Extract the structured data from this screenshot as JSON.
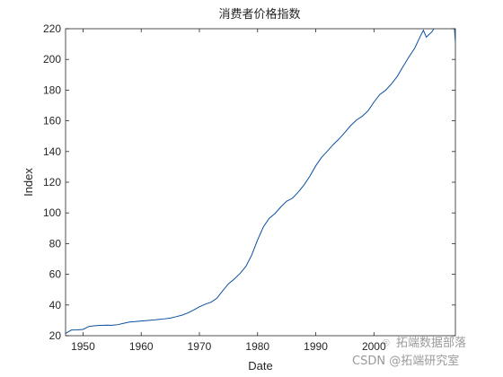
{
  "chart_data": {
    "type": "line",
    "title": "消费者价格指数",
    "xlabel": "Date",
    "ylabel": "Index",
    "xlim": [
      1947,
      2014
    ],
    "ylim": [
      20,
      220
    ],
    "xticks": [
      1950,
      1960,
      1970,
      1980,
      1990,
      2000
    ],
    "xtick_labels": [
      "1950",
      "1960",
      "1970",
      "1980",
      "1990",
      "2000"
    ],
    "yticks": [
      20,
      40,
      60,
      80,
      100,
      120,
      140,
      160,
      180,
      200,
      220
    ],
    "grid": false,
    "line_color": "#0b4f9e",
    "series": [
      {
        "x": [
          1947,
          1948,
          1949,
          1950,
          1951,
          1952,
          1953,
          1954,
          1955,
          1956,
          1957,
          1958,
          1959,
          1960,
          1961,
          1962,
          1963,
          1964,
          1965,
          1966,
          1967,
          1968,
          1969,
          1970,
          1971,
          1972,
          1973,
          1974,
          1975,
          1976,
          1977,
          1978,
          1979,
          1980,
          1981,
          1982,
          1983,
          1984,
          1985,
          1986,
          1987,
          1988,
          1989,
          1990,
          1991,
          1992,
          1993,
          1994,
          1995,
          1996,
          1997,
          1998,
          1999,
          2000,
          2001,
          2002,
          2003,
          2004,
          2005,
          2006,
          2007,
          2008,
          2008.5,
          2009,
          2010,
          2011,
          2012,
          2013,
          2013.6,
          2014
        ],
        "y": [
          21.5,
          23.7,
          23.8,
          24.1,
          26.0,
          26.5,
          26.7,
          26.9,
          26.8,
          27.2,
          28.1,
          28.9,
          29.2,
          29.6,
          29.9,
          30.2,
          30.6,
          31.0,
          31.5,
          32.4,
          33.4,
          34.8,
          36.7,
          38.8,
          40.5,
          41.8,
          44.4,
          49.3,
          53.8,
          56.9,
          60.6,
          65.2,
          72.6,
          82.4,
          90.9,
          96.5,
          99.6,
          103.9,
          107.6,
          109.6,
          113.6,
          118.3,
          124.0,
          130.7,
          136.2,
          140.3,
          144.5,
          148.2,
          152.4,
          156.9,
          160.5,
          163.0,
          166.6,
          172.2,
          177.1,
          179.9,
          184.0,
          188.9,
          195.3,
          201.6,
          207.3,
          215.3,
          219.0,
          214.5,
          218.1,
          224.9,
          229.6,
          233.0,
          233.5,
          211.0
        ]
      }
    ]
  },
  "watermark": {
    "line1": "CSDN @拓端研究室",
    "line2": "拓端数据部落"
  }
}
